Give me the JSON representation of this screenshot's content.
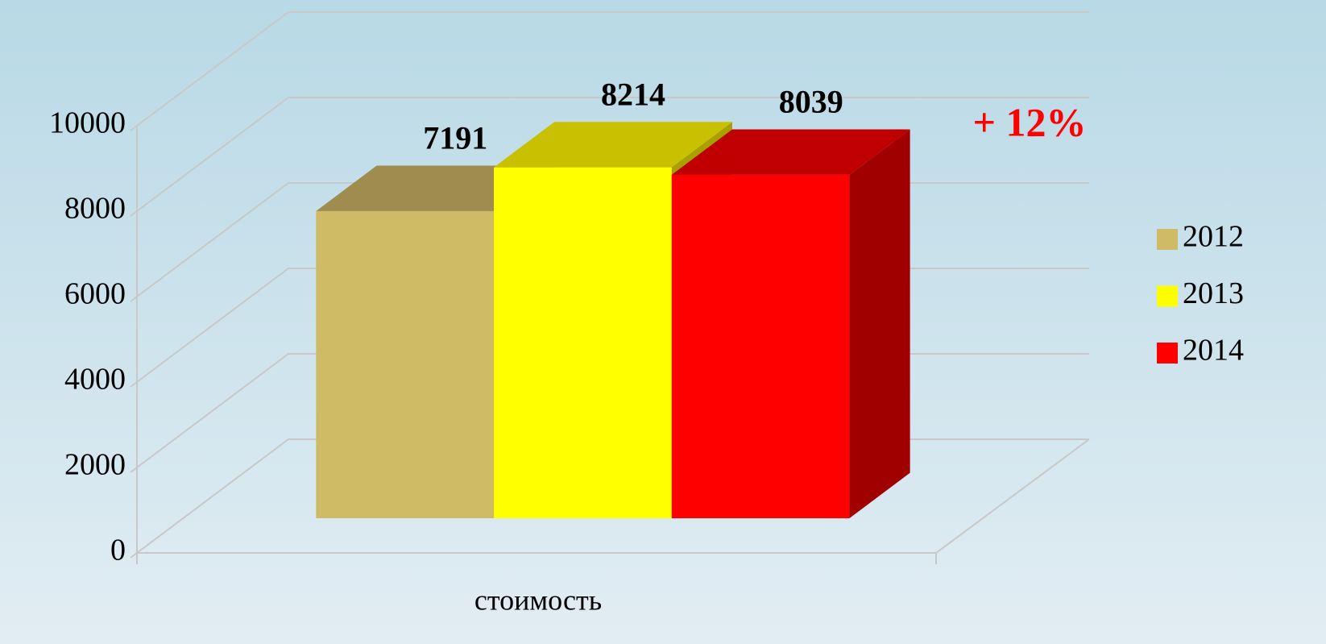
{
  "chart_data": {
    "type": "bar3d",
    "categories": [
      "стоимость"
    ],
    "series": [
      {
        "name": "2012",
        "color": "#cfbb66",
        "top_color": "#a08c4e",
        "side_color": "#8a7a40",
        "values": [
          7191
        ]
      },
      {
        "name": "2013",
        "color": "#ffff00",
        "top_color": "#c8c000",
        "side_color": "#a8a000",
        "values": [
          8214
        ]
      },
      {
        "name": "2014",
        "color": "#ff0000",
        "top_color": "#c00000",
        "side_color": "#a00000",
        "values": [
          8039
        ]
      }
    ],
    "ylim": [
      0,
      10000
    ],
    "yticks": [
      0,
      2000,
      4000,
      6000,
      8000,
      10000
    ],
    "grid": true,
    "legend": "right",
    "annotation": "+ 12%"
  }
}
